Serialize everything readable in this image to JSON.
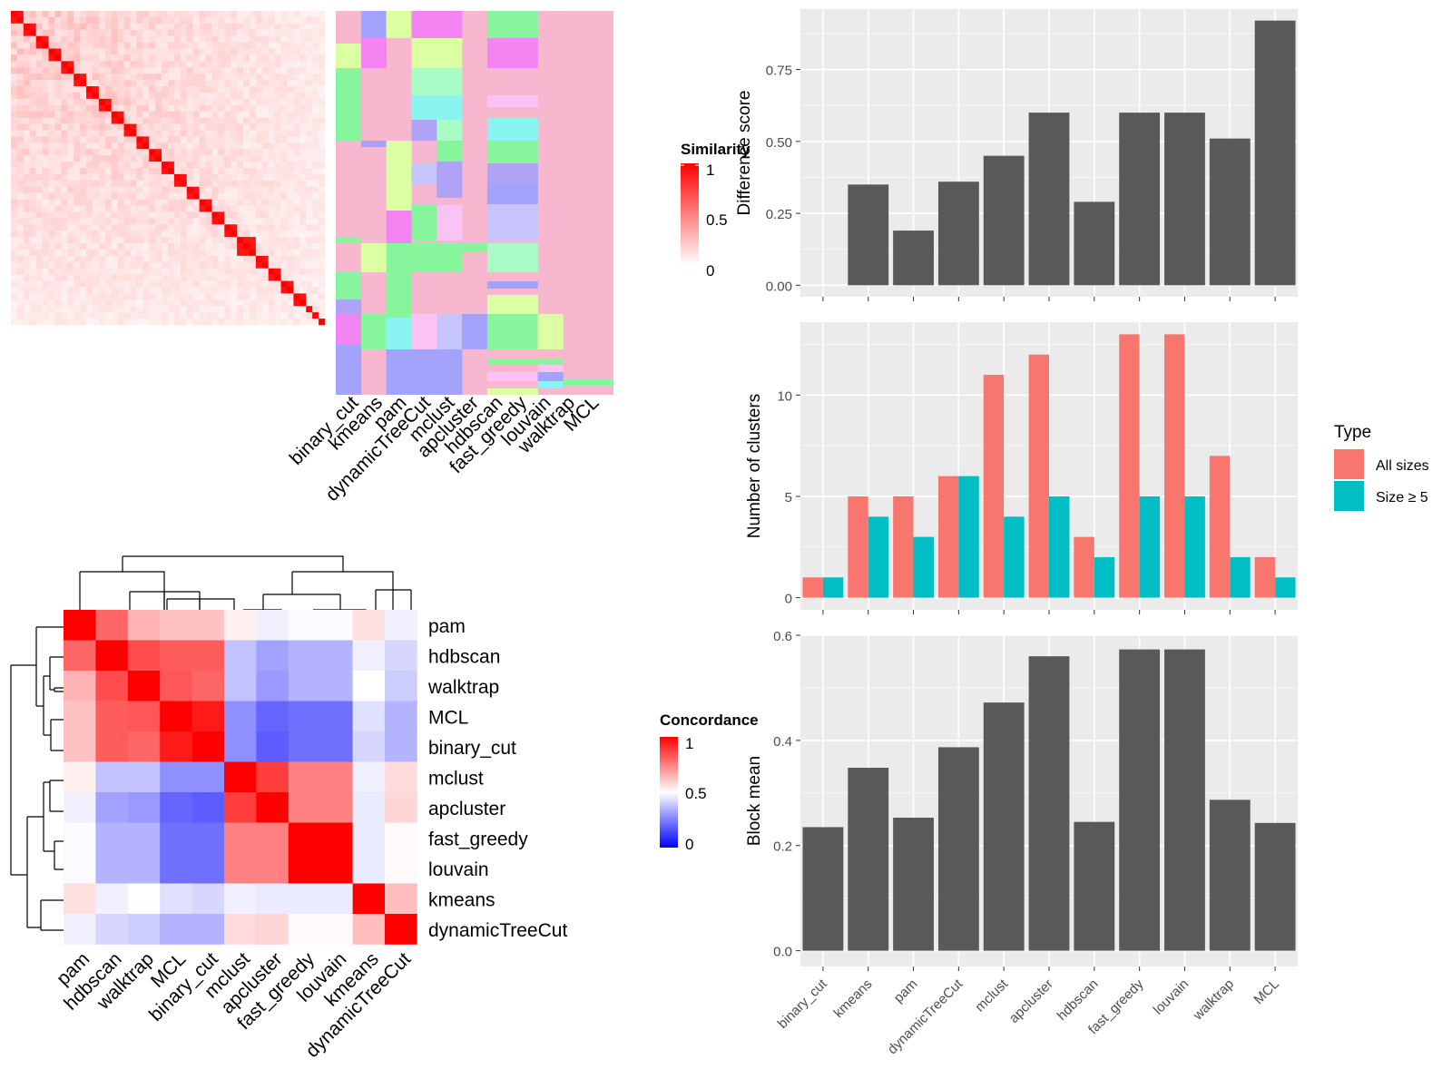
{
  "colors": {
    "panel_bg": "#EBEBEB",
    "grid_major": "#FFFFFF",
    "bar_dark": "#595959",
    "all_sizes": "#F8766D",
    "size_ge5": "#00BFC4",
    "heat_high": "#FF0000",
    "heat_low": "#0000FF",
    "heat_mid": "#FFFFFF",
    "block_background": "#F6B7CF"
  },
  "top_heatmap": {
    "legend_title": "Similarity",
    "legend_ticks": [
      "1",
      "0.5",
      "0"
    ],
    "method_labels": [
      "binary_cut",
      "kmeans",
      "pam",
      "dynamicTreeCut",
      "mclust",
      "apcluster",
      "hdbscan",
      "fast_greedy",
      "louvain",
      "walktrap",
      "MCL"
    ]
  },
  "concordance_heatmap": {
    "legend_title": "Concordance",
    "legend_ticks": [
      "1",
      "0.5",
      "0"
    ],
    "row_labels": [
      "pam",
      "hdbscan",
      "walktrap",
      "MCL",
      "binary_cut",
      "mclust",
      "apcluster",
      "fast_greedy",
      "louvain",
      "kmeans",
      "dynamicTreeCut"
    ],
    "col_labels": [
      "pam",
      "hdbscan",
      "walktrap",
      "MCL",
      "binary_cut",
      "mclust",
      "apcluster",
      "fast_greedy",
      "louvain",
      "kmeans",
      "dynamicTreeCut"
    ],
    "matrix": [
      [
        1.0,
        0.8,
        0.65,
        0.62,
        0.62,
        0.53,
        0.47,
        0.49,
        0.49,
        0.56,
        0.47
      ],
      [
        0.8,
        1.0,
        0.85,
        0.82,
        0.82,
        0.38,
        0.32,
        0.35,
        0.35,
        0.47,
        0.42
      ],
      [
        0.65,
        0.85,
        1.0,
        0.83,
        0.8,
        0.38,
        0.3,
        0.35,
        0.35,
        0.5,
        0.4
      ],
      [
        0.62,
        0.82,
        0.83,
        1.0,
        0.95,
        0.28,
        0.2,
        0.22,
        0.22,
        0.44,
        0.35
      ],
      [
        0.62,
        0.82,
        0.8,
        0.95,
        1.0,
        0.28,
        0.18,
        0.22,
        0.22,
        0.42,
        0.35
      ],
      [
        0.53,
        0.38,
        0.38,
        0.28,
        0.28,
        1.0,
        0.88,
        0.75,
        0.75,
        0.47,
        0.57
      ],
      [
        0.47,
        0.32,
        0.3,
        0.2,
        0.18,
        0.88,
        1.0,
        0.75,
        0.75,
        0.46,
        0.58
      ],
      [
        0.49,
        0.35,
        0.35,
        0.22,
        0.22,
        0.75,
        0.75,
        1.0,
        1.0,
        0.46,
        0.51
      ],
      [
        0.49,
        0.35,
        0.35,
        0.22,
        0.22,
        0.75,
        0.75,
        1.0,
        1.0,
        0.46,
        0.51
      ],
      [
        0.56,
        0.47,
        0.5,
        0.44,
        0.42,
        0.47,
        0.46,
        0.46,
        0.46,
        1.0,
        0.63
      ],
      [
        0.47,
        0.42,
        0.4,
        0.35,
        0.35,
        0.57,
        0.58,
        0.51,
        0.51,
        0.63,
        1.0
      ]
    ]
  },
  "chart_data": [
    {
      "type": "bar",
      "categories": [
        "binary_cut",
        "kmeans",
        "pam",
        "dynamicTreeCut",
        "mclust",
        "apcluster",
        "hdbscan",
        "fast_greedy",
        "louvain",
        "walktrap",
        "MCL"
      ],
      "values": [
        0,
        0.35,
        0.19,
        0.36,
        0.45,
        0.6,
        0.29,
        0.6,
        0.6,
        0.51,
        0.92
      ],
      "title": "",
      "xlabel": "",
      "ylabel": "Difference score",
      "ylim": [
        -0.04,
        0.96
      ],
      "yticks": [
        "0.00",
        "0.25",
        "0.50",
        "0.75"
      ],
      "grid": true
    },
    {
      "type": "bar",
      "categories": [
        "binary_cut",
        "kmeans",
        "pam",
        "dynamicTreeCut",
        "mclust",
        "apcluster",
        "hdbscan",
        "fast_greedy",
        "louvain",
        "walktrap",
        "MCL"
      ],
      "series": [
        {
          "name": "All sizes",
          "values": [
            1,
            5,
            5,
            6,
            11,
            12,
            3,
            13,
            13,
            7,
            2
          ]
        },
        {
          "name": "Size ≥ 5",
          "values": [
            1,
            4,
            3,
            6,
            4,
            5,
            2,
            5,
            5,
            2,
            1
          ]
        }
      ],
      "title": "",
      "xlabel": "",
      "ylabel": "Number of clusters",
      "ylim": [
        -0.6,
        13.6
      ],
      "yticks": [
        "0",
        "5",
        "10"
      ],
      "legend_title": "Type",
      "legend_position": "right",
      "grid": true
    },
    {
      "type": "bar",
      "categories": [
        "binary_cut",
        "kmeans",
        "pam",
        "dynamicTreeCut",
        "mclust",
        "apcluster",
        "hdbscan",
        "fast_greedy",
        "louvain",
        "walktrap",
        "MCL"
      ],
      "values": [
        0.235,
        0.348,
        0.253,
        0.387,
        0.472,
        0.56,
        0.245,
        0.573,
        0.573,
        0.287,
        0.243
      ],
      "title": "",
      "xlabel": "",
      "ylabel": "Block mean",
      "ylim": [
        -0.03,
        0.6
      ],
      "yticks": [
        "0.0",
        "0.2",
        "0.4",
        "0.6"
      ],
      "grid": true
    }
  ]
}
